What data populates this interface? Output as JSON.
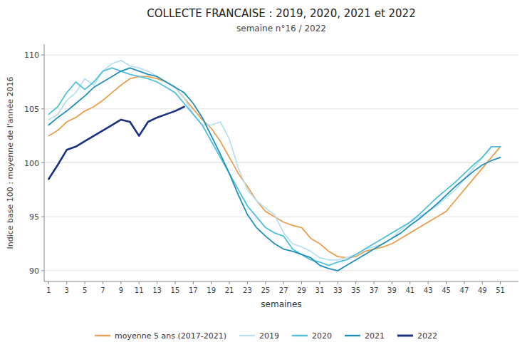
{
  "chart_data": {
    "type": "line",
    "title": "COLLECTE FRANCAISE : 2019, 2020, 2021 et 2022",
    "subtitle": "semaine n°16 / 2022",
    "x_label": "semaines",
    "y_label": "Indice base 100 : moyenne de l'année 2016",
    "x": [
      1,
      2,
      3,
      4,
      5,
      6,
      7,
      8,
      9,
      10,
      11,
      12,
      13,
      14,
      15,
      16,
      17,
      18,
      19,
      20,
      21,
      22,
      23,
      24,
      25,
      26,
      27,
      28,
      29,
      30,
      31,
      32,
      33,
      34,
      35,
      36,
      37,
      38,
      39,
      40,
      41,
      42,
      43,
      44,
      45,
      46,
      47,
      48,
      49,
      50,
      51
    ],
    "xlim": [
      0.5,
      53
    ],
    "xticks": [
      1,
      3,
      5,
      7,
      9,
      11,
      13,
      15,
      17,
      19,
      21,
      23,
      25,
      27,
      29,
      31,
      33,
      35,
      37,
      39,
      41,
      43,
      45,
      47,
      49,
      51
    ],
    "ylim": [
      89,
      111
    ],
    "yticks": [
      90,
      95,
      100,
      105,
      110
    ],
    "grid": true,
    "legend": "bottom",
    "series": [
      {
        "name": "moyenne 5 ans (2017-2021)",
        "color": "#E8A050",
        "values": [
          102.5,
          103.0,
          103.8,
          104.2,
          104.8,
          105.2,
          105.8,
          106.5,
          107.2,
          107.8,
          108.0,
          108.0,
          107.8,
          107.5,
          107.0,
          106.0,
          105.0,
          104.0,
          103.2,
          102.0,
          100.5,
          99.0,
          97.8,
          96.5,
          95.5,
          95.0,
          94.5,
          94.2,
          94.0,
          93.0,
          92.5,
          91.8,
          91.3,
          91.2,
          91.3,
          91.8,
          92.0,
          92.2,
          92.5,
          93.0,
          93.5,
          94.0,
          94.5,
          95.0,
          95.5,
          96.5,
          97.5,
          98.5,
          99.5,
          100.5,
          101.5
        ]
      },
      {
        "name": "2019",
        "color": "#B8E0F0",
        "values": [
          104.0,
          104.5,
          105.8,
          106.5,
          107.8,
          107.2,
          108.5,
          109.2,
          109.5,
          109.0,
          108.8,
          108.5,
          108.0,
          107.5,
          107.0,
          106.0,
          104.5,
          103.5,
          103.5,
          103.8,
          102.2,
          99.5,
          97.5,
          96.5,
          95.8,
          95.2,
          93.5,
          92.5,
          92.2,
          91.8,
          91.2,
          91.0,
          91.0,
          91.2,
          91.5,
          92.0,
          92.2,
          92.5,
          93.0,
          93.8,
          94.5,
          95.0,
          95.5,
          96.0,
          96.8,
          97.5,
          98.5,
          99.5,
          100.5,
          101.5,
          101.5
        ]
      },
      {
        "name": "2020",
        "color": "#50C0D8",
        "values": [
          104.5,
          105.2,
          106.5,
          107.5,
          106.8,
          107.5,
          108.5,
          108.8,
          108.5,
          108.2,
          108.0,
          107.8,
          107.5,
          107.0,
          106.5,
          105.5,
          104.5,
          103.5,
          102.0,
          100.5,
          99.0,
          97.5,
          96.0,
          95.0,
          94.0,
          93.5,
          93.2,
          92.0,
          91.5,
          91.0,
          90.8,
          90.5,
          90.8,
          91.0,
          91.5,
          92.0,
          92.5,
          93.0,
          93.5,
          94.0,
          94.5,
          95.2,
          96.0,
          96.8,
          97.5,
          98.2,
          99.0,
          99.8,
          100.5,
          101.5,
          101.5
        ]
      },
      {
        "name": "2021",
        "color": "#2090B8",
        "values": [
          103.5,
          104.2,
          104.8,
          105.5,
          106.2,
          107.0,
          107.5,
          108.0,
          108.5,
          108.8,
          108.5,
          108.2,
          108.0,
          107.5,
          107.0,
          106.5,
          105.5,
          104.2,
          102.5,
          100.8,
          99.0,
          97.0,
          95.2,
          94.0,
          93.2,
          92.5,
          92.0,
          91.8,
          91.5,
          91.2,
          90.5,
          90.2,
          90.0,
          90.5,
          91.0,
          91.5,
          92.0,
          92.5,
          93.0,
          93.5,
          94.2,
          94.8,
          95.5,
          96.2,
          97.0,
          97.8,
          98.5,
          99.2,
          99.8,
          100.2,
          100.5
        ]
      },
      {
        "name": "2022",
        "color": "#1A3080",
        "values": [
          98.5,
          99.8,
          101.2,
          101.5,
          102.0,
          102.5,
          103.0,
          103.5,
          104.0,
          103.8,
          102.5,
          103.8,
          104.2,
          104.5,
          104.8,
          105.2,
          null,
          null,
          null,
          null,
          null,
          null,
          null,
          null,
          null,
          null,
          null,
          null,
          null,
          null,
          null,
          null,
          null,
          null,
          null,
          null,
          null,
          null,
          null,
          null,
          null,
          null,
          null,
          null,
          null,
          null,
          null,
          null,
          null,
          null,
          null
        ]
      }
    ]
  }
}
